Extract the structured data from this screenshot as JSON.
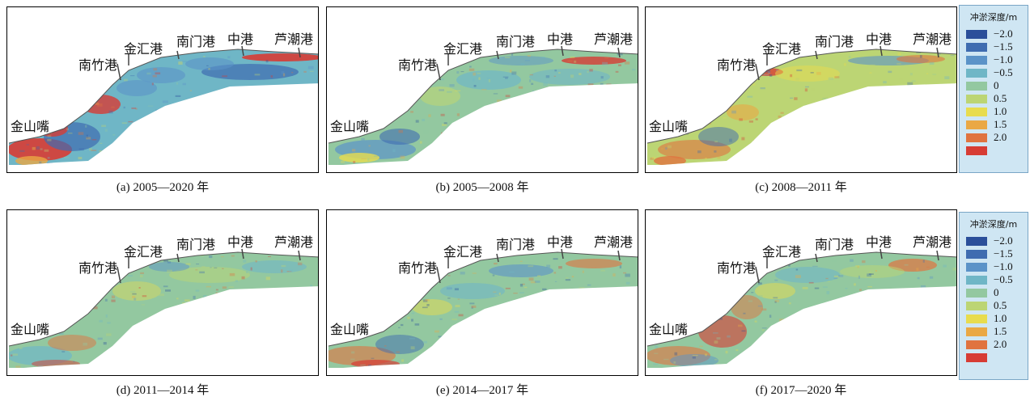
{
  "panels": [
    {
      "caption": "(a) 2005—2020 年",
      "scheme": "a"
    },
    {
      "caption": "(b) 2005—2008 年",
      "scheme": "b"
    },
    {
      "caption": "(c) 2008—2011 年",
      "scheme": "c"
    },
    {
      "caption": "(d) 2011—2014 年",
      "scheme": "d"
    },
    {
      "caption": "(e) 2014—2017 年",
      "scheme": "e"
    },
    {
      "caption": "(f) 2017—2020 年",
      "scheme": "f"
    }
  ],
  "places": {
    "jinshanzui": "金山嘴",
    "nanzhugang": "南竹港",
    "jinhuigang": "金汇港",
    "nanmengang": "南门港",
    "zhonggang": "中港",
    "luchaogang": "芦潮港"
  },
  "legend": {
    "title": "冲淤深度/m",
    "items": [
      {
        "label": "−2.0",
        "value": -2.0,
        "color": "#2b4f9a"
      },
      {
        "label": "−1.5",
        "value": -1.5,
        "color": "#3f6cb0"
      },
      {
        "label": "−1.0",
        "value": -1.0,
        "color": "#5b93c8"
      },
      {
        "label": "−0.5",
        "value": -0.5,
        "color": "#6fb6c6"
      },
      {
        "label": "0",
        "value": 0,
        "color": "#93c8a0"
      },
      {
        "label": "0.5",
        "value": 0.5,
        "color": "#bcd574"
      },
      {
        "label": "1.0",
        "value": 1.0,
        "color": "#e8dc4e"
      },
      {
        "label": "1.5",
        "value": 1.5,
        "color": "#eaa844"
      },
      {
        "label": "2.0",
        "value": 2.0,
        "color": "#e0733f"
      },
      {
        "label": "",
        "value": 2.5,
        "color": "#d73c34"
      }
    ]
  }
}
